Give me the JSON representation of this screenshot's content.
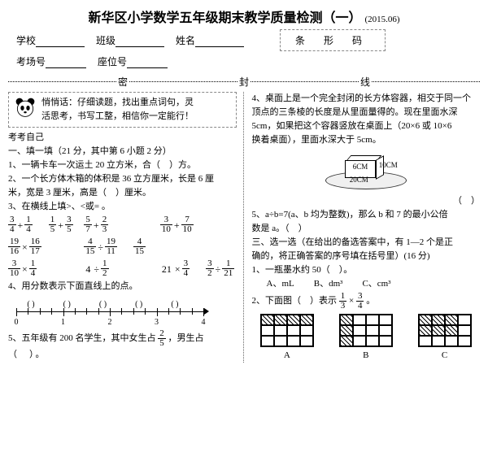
{
  "header": {
    "title": "新华区小学数学五年级期末教学质量检测（一）",
    "date": "(2015.06)",
    "fields": {
      "school": "学校",
      "class": "班级",
      "name": "姓名",
      "room": "考场号",
      "seat": "座位号"
    },
    "barcode": "条 形 码"
  },
  "sealline": {
    "mi": "密",
    "feng": "封",
    "xian": "线"
  },
  "left": {
    "tip_l1": "悄悄话：仔细读题，找出重点词句，灵",
    "tip_l2": "活思考，书写工整，相信你一定能行！",
    "selfcheck": "考考自己",
    "s1_title": "一、填一填（21 分，其中第 6 小题 2 分）",
    "q1": "1、一辆卡车一次运土 20 立方米，合（　）方。",
    "q2a": "2、一个长方体木箱的体积是 36 立方厘米，长是 6 厘",
    "q2b": "米，宽是 3 厘米，高是（　）厘米。",
    "q3": "3、在横线上填>、<或= 。",
    "exprs": [
      {
        "a": {
          "n": "3",
          "d": "4"
        },
        "op": "+",
        "b": {
          "n": "1",
          "d": "4"
        },
        "cmp": true,
        "c": {
          "n": "1",
          "d": "5"
        },
        "op2": "+",
        "d": {
          "n": "3",
          "d": "5"
        }
      },
      {
        "a": {
          "n": "5",
          "d": "7"
        },
        "op": "+",
        "b": {
          "n": "2",
          "d": "3"
        },
        "cmp": false
      },
      {
        "a": {
          "n": "3",
          "d": "10"
        },
        "op": "+",
        "b": {
          "n": "7",
          "d": "10"
        },
        "cmp": false
      },
      {
        "a": {
          "n": "19",
          "d": "16"
        },
        "op": "×",
        "b": {
          "n": "16",
          "d": "17"
        },
        "cmp": false
      },
      {
        "a": {
          "n": "4",
          "d": "15"
        },
        "op": "÷",
        "b": {
          "n": "19",
          "d": "11"
        },
        "cmp": true,
        "c": {
          "n": "4",
          "d": "15"
        },
        "single_c": true
      },
      {},
      {
        "a": {
          "n": "3",
          "d": "10"
        },
        "op": "×",
        "b": {
          "n": "1",
          "d": "4"
        },
        "cmp": false
      },
      {
        "lit_a": "4",
        "op": "÷",
        "b": {
          "n": "1",
          "d": "2"
        },
        "cmp": false
      },
      {
        "lit_a": "21",
        "op": "×",
        "b": {
          "n": "3",
          "d": "4"
        },
        "cmp": true,
        "c": {
          "n": "3",
          "d": "2"
        },
        "op2": "÷",
        "d": {
          "n": "1",
          "d": "21"
        }
      }
    ],
    "q4": "4、用分数表示下面直线上的点。",
    "numberline": {
      "ticks": [
        0,
        1,
        2,
        3,
        4
      ],
      "above_parens": 5
    },
    "q5a": "5、五年级有 200 名学生，其中女生占",
    "q5frac": {
      "n": "2",
      "d": "5"
    },
    "q5b": "，男生占",
    "q5c": "（　）。"
  },
  "right": {
    "q4a": "4、桌面上是一个完全封闭的长方体容器，相交于同一个",
    "q4b": "顶点的三条棱的长度是从里面量得的。现在里面水深",
    "q4c": "5cm，如果把这个容器竖放在桌面上（20×6 或 10×6",
    "q4d": "换着桌面），里面水深大于 5cm。",
    "box_dims": {
      "h": "6CM",
      "w": "20CM",
      "d": "10CM"
    },
    "blank_paren": "（　）",
    "q5a": "5、a÷b=7(a、b 均为整数)，那么 b 和 7 的最小公倍",
    "q5b": "数是 a。（　）",
    "s3_title": "三、选一选（在给出的备选答案中，有 1—2 个是正",
    "s3_title2": "确的，将正确答案的序号填在括号里）(16 分)",
    "q1": "1、一瓶墨水约 50（　）。",
    "opts1": {
      "A": "A、mL",
      "B": "B、dm³",
      "C": "C、cm³"
    },
    "q2a": "2、下面图（　）表示",
    "q2frac1": {
      "n": "1",
      "d": "3"
    },
    "q2times": "×",
    "q2frac2": {
      "n": "3",
      "d": "4"
    },
    "q2b": "。",
    "gridA": [
      1,
      1,
      1,
      1,
      0,
      0,
      0,
      0,
      0,
      0,
      0,
      0
    ],
    "gridB": [
      1,
      0,
      0,
      0,
      1,
      0,
      0,
      0,
      1,
      0,
      0,
      0
    ],
    "gridC": [
      1,
      1,
      1,
      0,
      1,
      1,
      1,
      0,
      0,
      0,
      0,
      0
    ],
    "labels": {
      "A": "A",
      "B": "B",
      "C": "C"
    }
  }
}
